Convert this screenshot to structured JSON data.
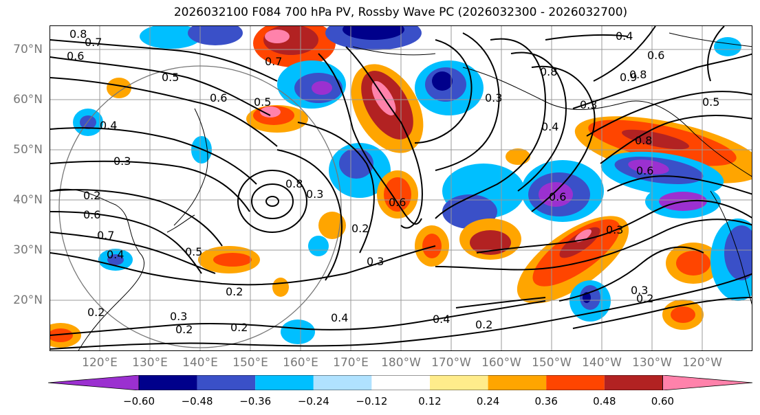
{
  "title": "2026032100 F084 700 hPa PV, Rossby Wave PC (2026032300 - 2026032700)",
  "lat_labels": [
    "70°N",
    "60°N",
    "50°N",
    "40°N",
    "30°N",
    "20°N"
  ],
  "lon_labels": [
    "120°E",
    "130°E",
    "140°E",
    "150°E",
    "160°E",
    "170°E",
    "180°W",
    "170°W",
    "160°W",
    "150°W",
    "140°W",
    "130°W",
    "120°W"
  ],
  "colorbar": {
    "ticks": [
      "−0.60",
      "−0.48",
      "−0.36",
      "−0.24",
      "−0.12",
      "0.12",
      "0.24",
      "0.36",
      "0.48",
      "0.60"
    ],
    "colors": [
      "#9b30d0",
      "#00008b",
      "#3a50c8",
      "#00bfff",
      "#b0e2ff",
      "#ffffff",
      "#ffec8b",
      "#ffa500",
      "#ff4500",
      "#b22222",
      "#ff82ab"
    ]
  },
  "contour_labels": [
    "0.8",
    "0.7",
    "0.6",
    "0.5",
    "0.6",
    "0.5",
    "0.4",
    "0.3",
    "0.2",
    "0.6",
    "0.7",
    "0.4",
    "0.5",
    "0.2",
    "0.3",
    "0.2",
    "0.2",
    "0.7",
    "0.8",
    "0.3",
    "0.2",
    "0.3",
    "0.6",
    "0.4",
    "0.2",
    "0.6",
    "0.4",
    "0.3",
    "0.2",
    "0.3",
    "0.4",
    "0.6",
    "0.5",
    "0.8",
    "0.3",
    "0.4",
    "0.8",
    "0.6",
    "0.8",
    "0.9",
    "0.3",
    "0.2"
  ]
}
